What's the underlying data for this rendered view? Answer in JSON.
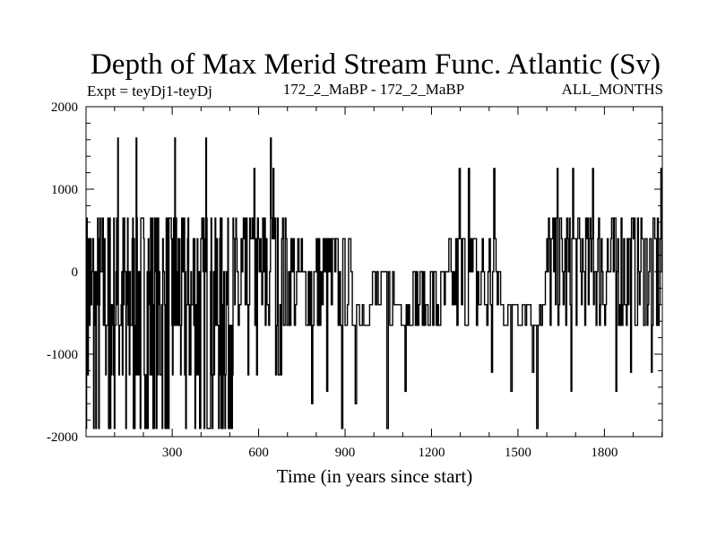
{
  "chart_data": {
    "type": "line",
    "title": "Depth of Max Merid Stream Func. Atlantic (Sv)",
    "subtitle_left": "Expt = teyDj1-teyDj",
    "subtitle_center": "172_2_MaBP - 172_2_MaBP",
    "subtitle_right": "ALL_MONTHS",
    "xlabel": "Time (in years since start)",
    "ylabel": "",
    "xlim": [
      1,
      2001
    ],
    "ylim": [
      -2000,
      2000
    ],
    "x_ticks": [
      300,
      600,
      900,
      1200,
      1500,
      1800
    ],
    "y_ticks": [
      -2000,
      -1000,
      0,
      1000,
      2000
    ],
    "x_minor_step": 100,
    "y_minor_step": 200,
    "grid": false,
    "line_color": "#000000",
    "depth_levels": [
      -1900,
      -1250,
      -650,
      -400,
      0,
      400,
      650,
      1250,
      1620
    ],
    "segments": [
      {
        "start": 1,
        "end": 560,
        "levels": [
          -1900,
          -1250,
          -650,
          -400,
          0,
          400,
          650
        ],
        "step": 2
      },
      {
        "start": 560,
        "end": 700,
        "levels": [
          -1250,
          -650,
          -400,
          0,
          400,
          650
        ],
        "step": 3
      },
      {
        "start": 700,
        "end": 920,
        "levels": [
          -650,
          -400,
          0,
          400
        ],
        "step": 4
      },
      {
        "start": 920,
        "end": 1100,
        "levels": [
          -650,
          -400,
          0
        ],
        "step": 5
      },
      {
        "start": 1100,
        "end": 1260,
        "levels": [
          -650,
          -400,
          0
        ],
        "step": 4
      },
      {
        "start": 1260,
        "end": 1440,
        "levels": [
          -650,
          -400,
          0,
          400
        ],
        "step": 4
      },
      {
        "start": 1440,
        "end": 1600,
        "levels": [
          -650,
          -400,
          0
        ],
        "step": 5
      },
      {
        "start": 1600,
        "end": 2001,
        "levels": [
          -650,
          -400,
          0,
          400,
          650
        ],
        "step": 3
      }
    ],
    "spikes": [
      {
        "x": 112,
        "y": 1620
      },
      {
        "x": 175,
        "y": 1620
      },
      {
        "x": 310,
        "y": 1620
      },
      {
        "x": 418,
        "y": 1620
      },
      {
        "x": 640,
        "y": 1620
      },
      {
        "x": 1297,
        "y": 1250
      },
      {
        "x": 1330,
        "y": 1250
      },
      {
        "x": 1415,
        "y": 1250
      },
      {
        "x": 1636,
        "y": 1250
      },
      {
        "x": 1690,
        "y": 1250
      },
      {
        "x": 1760,
        "y": 1250
      },
      {
        "x": 1995,
        "y": 1250
      },
      {
        "x": 585,
        "y": 1250
      },
      {
        "x": 650,
        "y": 1250
      },
      {
        "x": 28,
        "y": -1900
      },
      {
        "x": 80,
        "y": -1900
      },
      {
        "x": 140,
        "y": -1900
      },
      {
        "x": 215,
        "y": -1900
      },
      {
        "x": 395,
        "y": -1900
      },
      {
        "x": 470,
        "y": -1900
      },
      {
        "x": 785,
        "y": -1600
      },
      {
        "x": 835,
        "y": -1450
      },
      {
        "x": 888,
        "y": -1900
      },
      {
        "x": 935,
        "y": -1600
      },
      {
        "x": 1045,
        "y": -1900
      },
      {
        "x": 1108,
        "y": -1450
      },
      {
        "x": 1408,
        "y": -1220
      },
      {
        "x": 1475,
        "y": -1450
      },
      {
        "x": 1550,
        "y": -1220
      },
      {
        "x": 1566,
        "y": -1900
      },
      {
        "x": 1685,
        "y": -1450
      },
      {
        "x": 1840,
        "y": -1450
      },
      {
        "x": 1890,
        "y": -1220
      },
      {
        "x": 1963,
        "y": -1220
      }
    ]
  }
}
